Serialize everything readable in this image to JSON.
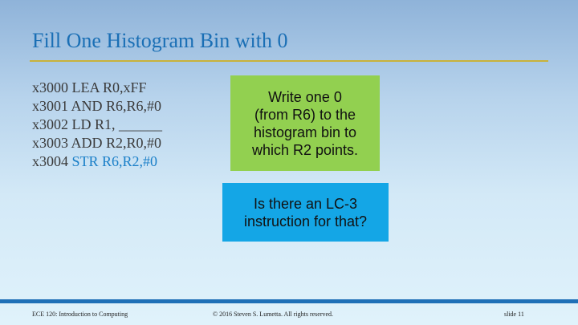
{
  "slide": {
    "title": "Fill One Histogram Bin with 0"
  },
  "code": {
    "lines": [
      {
        "addr": "x3000",
        "instr": "LEA R0,xFF"
      },
      {
        "addr": "x3001",
        "instr": "AND R6,R6,#0"
      },
      {
        "addr": "x3002",
        "instr": "LD R1, ______"
      },
      {
        "addr": "x3003",
        "instr": "ADD R2,R0,#0"
      },
      {
        "addr": "x3004",
        "instr": "STR R6,R2,#0"
      }
    ]
  },
  "callouts": {
    "green": "Write one 0\n(from R6) to the\nhistogram bin to\nwhich R2 points.",
    "blue": "Is there an LC-3\ninstruction for that?"
  },
  "footer": {
    "course": "ECE 120: Introduction to Computing",
    "copyright": "© 2016 Steven S. Lumetta.  All rights reserved.",
    "slide_number": "slide 11"
  },
  "colors": {
    "title": "#1a6fb5",
    "highlight": "#1a7fc8",
    "green_box": "#92d050",
    "blue_box": "#14a6e6",
    "footer_rule": "#1f70b7"
  }
}
